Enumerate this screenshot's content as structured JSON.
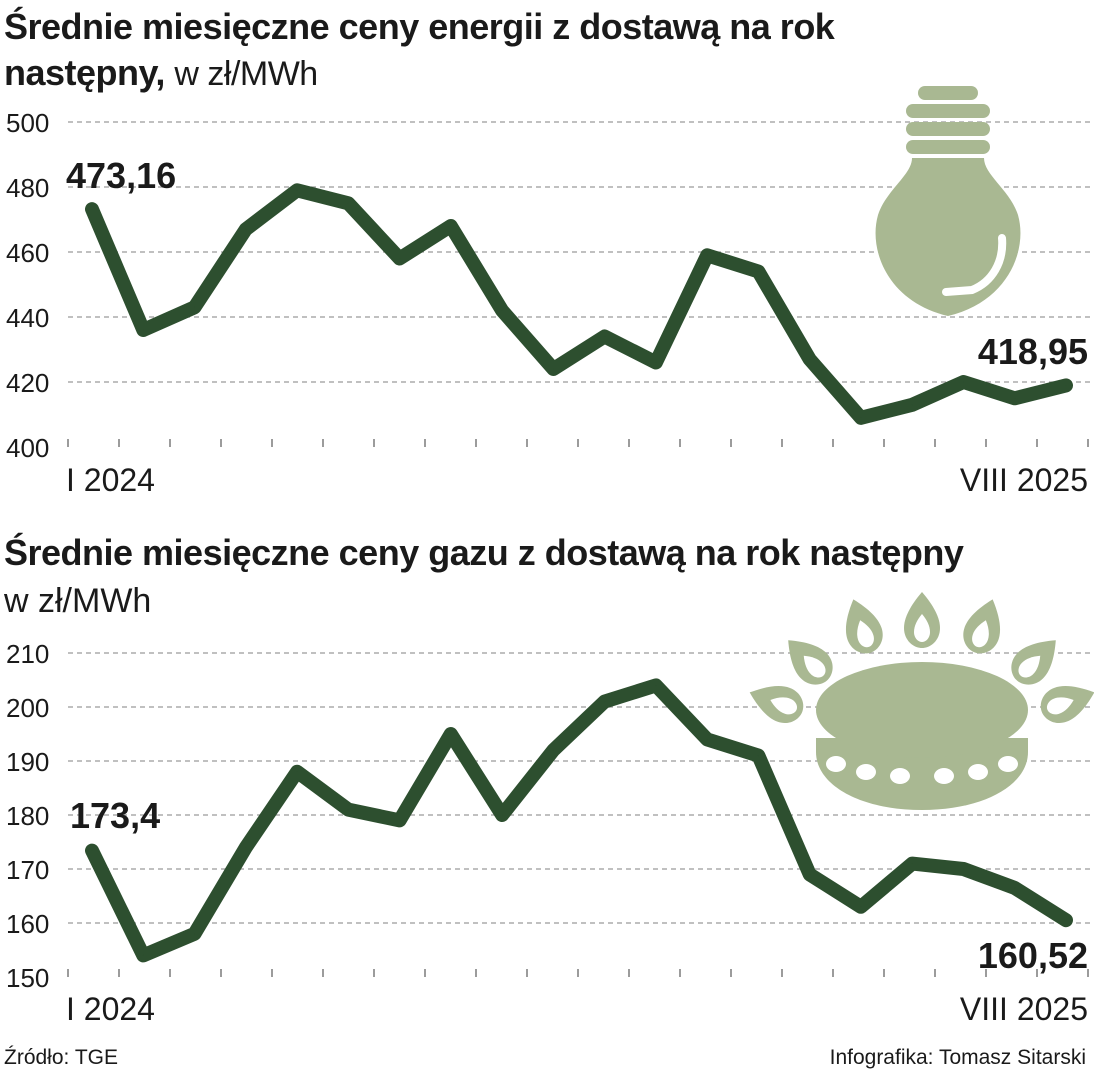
{
  "chart_data": [
    {
      "type": "line",
      "title": "Średnie miesięczne ceny energii z dostawą na rok następny,",
      "unit": "w zł/MWh",
      "x_start_label": "I 2024",
      "x_end_label": "VIII 2025",
      "start_value_label": "473,16",
      "end_value_label": "418,95",
      "ylim": [
        400,
        500
      ],
      "yticks": [
        400,
        420,
        440,
        460,
        480,
        500
      ],
      "grid": true,
      "icon": "light-bulb-icon",
      "line_color": "#2d4f2f",
      "icon_color": "#a9b892",
      "values": [
        473.16,
        436,
        443,
        467,
        479,
        475,
        458,
        468,
        442,
        424,
        434,
        426,
        459,
        454,
        427,
        409,
        413,
        420,
        415,
        418.95
      ]
    },
    {
      "type": "line",
      "title": "Średnie miesięczne ceny gazu z dostawą na rok następny",
      "unit": "w zł/MWh",
      "x_start_label": "I 2024",
      "x_end_label": "VIII 2025",
      "start_value_label": "173,4",
      "end_value_label": "160,52",
      "ylim": [
        150,
        210
      ],
      "yticks": [
        150,
        160,
        170,
        180,
        190,
        200,
        210
      ],
      "grid": true,
      "icon": "gas-burner-icon",
      "line_color": "#2d4f2f",
      "icon_color": "#a9b892",
      "values": [
        173.4,
        154,
        158,
        174,
        188,
        181,
        179,
        195,
        180,
        192,
        201,
        204,
        194,
        191,
        169,
        163,
        171,
        170,
        166.5,
        160.52
      ]
    }
  ],
  "footer": {
    "source": "Źródło: TGE",
    "credit": "Infografika: Tomasz Sitarski"
  }
}
